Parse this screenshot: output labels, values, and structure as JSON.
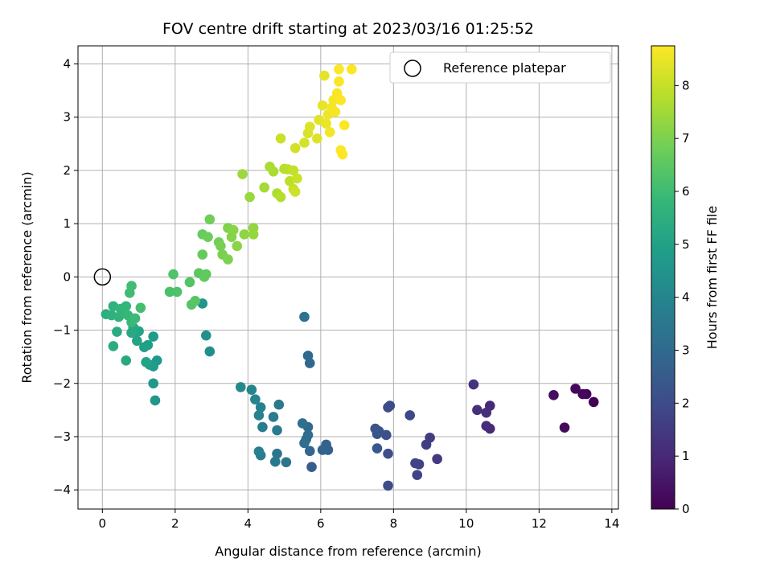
{
  "chart_data": {
    "type": "scatter",
    "title": "FOV centre drift starting at 2023/03/16 01:25:52",
    "xlabel": "Angular distance from reference (arcmin)",
    "ylabel": "Rotation from reference (arcmin)",
    "xlim": [
      -0.67,
      14.18
    ],
    "ylim": [
      -4.36,
      4.34
    ],
    "xticks": [
      0,
      2,
      4,
      6,
      8,
      10,
      12,
      14
    ],
    "yticks": [
      -4,
      -3,
      -2,
      -1,
      0,
      1,
      2,
      3,
      4
    ],
    "grid": true,
    "colorbar": {
      "label": "Hours from first FF file",
      "min": 0,
      "max": 8.75,
      "ticks": [
        0,
        1,
        2,
        3,
        4,
        5,
        6,
        7,
        8
      ],
      "colormap": "viridis"
    },
    "legend": {
      "position": "top-right",
      "entries": [
        {
          "label": "Reference platepar",
          "marker": "open-circle"
        }
      ],
      "reference_point": {
        "x": 0,
        "y": 0
      }
    },
    "series": [
      {
        "points": [
          {
            "x": 13.5,
            "y": -2.35,
            "c": 0.0
          },
          {
            "x": 13.3,
            "y": -2.2,
            "c": 0.1
          },
          {
            "x": 13.2,
            "y": -2.2,
            "c": 0.15
          },
          {
            "x": 13.0,
            "y": -2.1,
            "c": 0.2
          },
          {
            "x": 12.7,
            "y": -2.83,
            "c": 0.25
          },
          {
            "x": 12.4,
            "y": -2.22,
            "c": 0.3
          },
          {
            "x": 10.65,
            "y": -2.42,
            "c": 1.0
          },
          {
            "x": 10.65,
            "y": -2.85,
            "c": 1.05
          },
          {
            "x": 10.55,
            "y": -2.8,
            "c": 1.1
          },
          {
            "x": 10.55,
            "y": -2.55,
            "c": 1.15
          },
          {
            "x": 10.3,
            "y": -2.5,
            "c": 1.2
          },
          {
            "x": 10.2,
            "y": -2.02,
            "c": 1.3
          },
          {
            "x": 9.2,
            "y": -3.42,
            "c": 1.5
          },
          {
            "x": 9.0,
            "y": -3.02,
            "c": 1.55
          },
          {
            "x": 8.9,
            "y": -3.15,
            "c": 1.6
          },
          {
            "x": 8.7,
            "y": -3.52,
            "c": 1.7
          },
          {
            "x": 8.65,
            "y": -3.72,
            "c": 1.75
          },
          {
            "x": 8.6,
            "y": -3.5,
            "c": 1.8
          },
          {
            "x": 8.45,
            "y": -2.6,
            "c": 1.85
          },
          {
            "x": 7.9,
            "y": -2.42,
            "c": 1.95
          },
          {
            "x": 7.85,
            "y": -2.45,
            "c": 2.0
          },
          {
            "x": 7.85,
            "y": -3.92,
            "c": 2.05
          },
          {
            "x": 7.85,
            "y": -3.32,
            "c": 2.1
          },
          {
            "x": 7.8,
            "y": -2.97,
            "c": 2.15
          },
          {
            "x": 7.6,
            "y": -2.9,
            "c": 2.2
          },
          {
            "x": 7.55,
            "y": -2.95,
            "c": 2.25
          },
          {
            "x": 7.5,
            "y": -2.85,
            "c": 2.3
          },
          {
            "x": 7.55,
            "y": -3.22,
            "c": 2.35
          },
          {
            "x": 5.75,
            "y": -3.57,
            "c": 2.6
          },
          {
            "x": 6.2,
            "y": -3.25,
            "c": 2.7
          },
          {
            "x": 6.15,
            "y": -3.15,
            "c": 2.75
          },
          {
            "x": 6.05,
            "y": -3.25,
            "c": 2.8
          },
          {
            "x": 5.7,
            "y": -3.27,
            "c": 2.85
          },
          {
            "x": 5.7,
            "y": -1.62,
            "c": 2.9
          },
          {
            "x": 5.65,
            "y": -1.48,
            "c": 2.95
          },
          {
            "x": 5.65,
            "y": -2.82,
            "c": 3.0
          },
          {
            "x": 5.65,
            "y": -2.97,
            "c": 3.05
          },
          {
            "x": 5.6,
            "y": -3.05,
            "c": 3.1
          },
          {
            "x": 5.55,
            "y": -3.12,
            "c": 3.15
          },
          {
            "x": 5.5,
            "y": -2.75,
            "c": 3.2
          },
          {
            "x": 5.55,
            "y": -0.75,
            "c": 3.3
          },
          {
            "x": 5.05,
            "y": -3.48,
            "c": 3.4
          },
          {
            "x": 4.8,
            "y": -3.32,
            "c": 3.45
          },
          {
            "x": 4.75,
            "y": -3.47,
            "c": 3.5
          },
          {
            "x": 4.85,
            "y": -2.4,
            "c": 3.55
          },
          {
            "x": 4.8,
            "y": -2.88,
            "c": 3.6
          },
          {
            "x": 4.7,
            "y": -2.63,
            "c": 3.65
          },
          {
            "x": 4.4,
            "y": -2.82,
            "c": 3.7
          },
          {
            "x": 4.35,
            "y": -3.35,
            "c": 3.75
          },
          {
            "x": 4.3,
            "y": -3.28,
            "c": 3.8
          },
          {
            "x": 4.35,
            "y": -2.45,
            "c": 3.85
          },
          {
            "x": 4.3,
            "y": -2.6,
            "c": 3.9
          },
          {
            "x": 4.2,
            "y": -2.3,
            "c": 3.95
          },
          {
            "x": 4.1,
            "y": -2.12,
            "c": 4.0
          },
          {
            "x": 3.8,
            "y": -2.07,
            "c": 4.1
          },
          {
            "x": 2.95,
            "y": -1.4,
            "c": 4.3
          },
          {
            "x": 2.85,
            "y": -1.1,
            "c": 4.4
          },
          {
            "x": 2.75,
            "y": -0.5,
            "c": 4.5
          },
          {
            "x": 1.45,
            "y": -2.32,
            "c": 4.6
          },
          {
            "x": 1.4,
            "y": -2.0,
            "c": 4.65
          },
          {
            "x": 1.5,
            "y": -1.57,
            "c": 4.7
          },
          {
            "x": 1.4,
            "y": -1.68,
            "c": 4.75
          },
          {
            "x": 1.4,
            "y": -1.12,
            "c": 4.8
          },
          {
            "x": 1.3,
            "y": -1.65,
            "c": 4.85
          },
          {
            "x": 1.25,
            "y": -1.28,
            "c": 4.9
          },
          {
            "x": 1.15,
            "y": -1.32,
            "c": 4.95
          },
          {
            "x": 1.2,
            "y": -1.6,
            "c": 5.0
          },
          {
            "x": 1.0,
            "y": -1.02,
            "c": 5.05
          },
          {
            "x": 0.95,
            "y": -1.2,
            "c": 5.1
          },
          {
            "x": 0.9,
            "y": -1.02,
            "c": 5.15
          },
          {
            "x": 0.85,
            "y": -0.95,
            "c": 5.2
          },
          {
            "x": 0.8,
            "y": -1.05,
            "c": 5.25
          },
          {
            "x": 0.65,
            "y": -1.57,
            "c": 5.3
          },
          {
            "x": 0.4,
            "y": -1.03,
            "c": 5.35
          },
          {
            "x": 0.3,
            "y": -1.3,
            "c": 5.4
          },
          {
            "x": 0.1,
            "y": -0.7,
            "c": 5.5
          },
          {
            "x": 0.25,
            "y": -0.72,
            "c": 5.55
          },
          {
            "x": 0.3,
            "y": -0.55,
            "c": 5.6
          },
          {
            "x": 0.45,
            "y": -0.75,
            "c": 5.65
          },
          {
            "x": 0.5,
            "y": -0.6,
            "c": 5.7
          },
          {
            "x": 0.6,
            "y": -0.65,
            "c": 5.75
          },
          {
            "x": 0.65,
            "y": -0.55,
            "c": 5.8
          },
          {
            "x": 0.7,
            "y": -0.72,
            "c": 5.85
          },
          {
            "x": 0.8,
            "y": -0.85,
            "c": 5.9
          },
          {
            "x": 0.9,
            "y": -0.78,
            "c": 5.95
          },
          {
            "x": 0.75,
            "y": -0.3,
            "c": 6.0
          },
          {
            "x": 0.8,
            "y": -0.17,
            "c": 6.05
          },
          {
            "x": 1.05,
            "y": -0.58,
            "c": 6.1
          },
          {
            "x": 1.85,
            "y": -0.28,
            "c": 6.2
          },
          {
            "x": 2.05,
            "y": -0.28,
            "c": 6.25
          },
          {
            "x": 1.95,
            "y": 0.05,
            "c": 6.3
          },
          {
            "x": 2.4,
            "y": -0.1,
            "c": 6.35
          },
          {
            "x": 2.45,
            "y": -0.52,
            "c": 6.4
          },
          {
            "x": 2.55,
            "y": -0.45,
            "c": 6.45
          },
          {
            "x": 2.65,
            "y": 0.07,
            "c": 6.5
          },
          {
            "x": 2.85,
            "y": 0.05,
            "c": 6.55
          },
          {
            "x": 2.8,
            "y": 0.0,
            "c": 6.6
          },
          {
            "x": 2.75,
            "y": 0.42,
            "c": 6.65
          },
          {
            "x": 2.75,
            "y": 0.8,
            "c": 6.7
          },
          {
            "x": 2.9,
            "y": 0.75,
            "c": 6.75
          },
          {
            "x": 2.95,
            "y": 1.08,
            "c": 6.8
          },
          {
            "x": 3.2,
            "y": 0.65,
            "c": 6.85
          },
          {
            "x": 3.25,
            "y": 0.58,
            "c": 6.9
          },
          {
            "x": 3.3,
            "y": 0.42,
            "c": 6.95
          },
          {
            "x": 3.45,
            "y": 0.33,
            "c": 7.0
          },
          {
            "x": 3.45,
            "y": 0.92,
            "c": 7.05
          },
          {
            "x": 3.55,
            "y": 0.75,
            "c": 7.1
          },
          {
            "x": 3.6,
            "y": 0.88,
            "c": 7.15
          },
          {
            "x": 3.7,
            "y": 0.58,
            "c": 7.2
          },
          {
            "x": 3.9,
            "y": 0.8,
            "c": 7.25
          },
          {
            "x": 4.15,
            "y": 0.92,
            "c": 7.3
          },
          {
            "x": 4.15,
            "y": 0.8,
            "c": 7.35
          },
          {
            "x": 4.05,
            "y": 1.5,
            "c": 7.4
          },
          {
            "x": 3.85,
            "y": 1.93,
            "c": 7.45
          },
          {
            "x": 4.45,
            "y": 1.68,
            "c": 7.55
          },
          {
            "x": 4.6,
            "y": 2.07,
            "c": 7.6
          },
          {
            "x": 4.7,
            "y": 1.98,
            "c": 7.65
          },
          {
            "x": 4.8,
            "y": 1.57,
            "c": 7.7
          },
          {
            "x": 4.9,
            "y": 1.5,
            "c": 7.75
          },
          {
            "x": 5.0,
            "y": 2.03,
            "c": 7.8
          },
          {
            "x": 5.1,
            "y": 2.02,
            "c": 7.85
          },
          {
            "x": 5.15,
            "y": 1.8,
            "c": 7.9
          },
          {
            "x": 5.25,
            "y": 1.65,
            "c": 7.95
          },
          {
            "x": 5.25,
            "y": 2.0,
            "c": 8.0
          },
          {
            "x": 5.35,
            "y": 1.85,
            "c": 8.05
          },
          {
            "x": 4.9,
            "y": 2.6,
            "c": 8.05
          },
          {
            "x": 5.3,
            "y": 1.6,
            "c": 8.1
          },
          {
            "x": 5.3,
            "y": 2.42,
            "c": 8.15
          },
          {
            "x": 5.55,
            "y": 2.52,
            "c": 8.2
          },
          {
            "x": 5.65,
            "y": 2.7,
            "c": 8.25
          },
          {
            "x": 5.7,
            "y": 2.82,
            "c": 8.3
          },
          {
            "x": 5.9,
            "y": 2.6,
            "c": 8.35
          },
          {
            "x": 5.95,
            "y": 2.95,
            "c": 8.4
          },
          {
            "x": 6.05,
            "y": 3.22,
            "c": 8.45
          },
          {
            "x": 6.15,
            "y": 2.88,
            "c": 8.5
          },
          {
            "x": 6.2,
            "y": 3.05,
            "c": 8.55
          },
          {
            "x": 6.25,
            "y": 2.72,
            "c": 8.6
          },
          {
            "x": 6.3,
            "y": 3.18,
            "c": 8.62
          },
          {
            "x": 6.35,
            "y": 3.32,
            "c": 8.64
          },
          {
            "x": 6.4,
            "y": 3.1,
            "c": 8.66
          },
          {
            "x": 6.45,
            "y": 3.45,
            "c": 8.68
          },
          {
            "x": 6.5,
            "y": 3.67,
            "c": 8.7
          },
          {
            "x": 6.5,
            "y": 3.9,
            "c": 8.72
          },
          {
            "x": 6.55,
            "y": 2.38,
            "c": 8.72
          },
          {
            "x": 6.6,
            "y": 2.3,
            "c": 8.73
          },
          {
            "x": 6.55,
            "y": 3.32,
            "c": 8.73
          },
          {
            "x": 6.65,
            "y": 2.85,
            "c": 8.74
          },
          {
            "x": 6.85,
            "y": 3.9,
            "c": 8.75
          },
          {
            "x": 6.1,
            "y": 3.78,
            "c": 8.4
          }
        ]
      }
    ]
  }
}
